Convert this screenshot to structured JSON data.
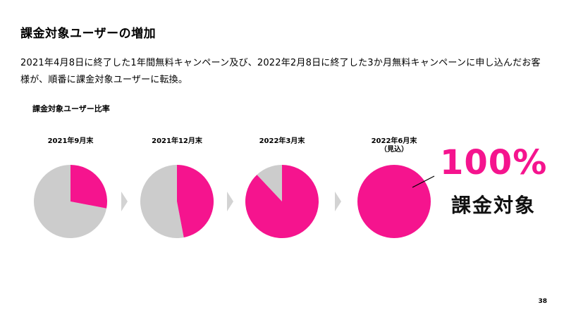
{
  "slide": {
    "title": "課金対象ユーザーの増加",
    "description": "2021年4月8日に終了した1年間無料キャンペーン及び、2022年2月8日に終了した3か月無料キャンペーンに申し込んだお客様が、順番に課金対象ユーザーに転換。",
    "page_number": "38"
  },
  "chart_data": {
    "type": "pie",
    "title": "課金対象ユーザー比率",
    "colors": {
      "paying": "#f5148e",
      "other": "#cccccc",
      "arrow": "#d3d3d3"
    },
    "pies": [
      {
        "label": "2021年9月末",
        "sublabel": "",
        "paying_ratio": 0.28
      },
      {
        "label": "2021年12月末",
        "sublabel": "",
        "paying_ratio": 0.47
      },
      {
        "label": "2022年3月末",
        "sublabel": "",
        "paying_ratio": 0.88
      },
      {
        "label": "2022年6月末",
        "sublabel": "（見込）",
        "paying_ratio": 1.0
      }
    ],
    "annotation": {
      "value": "100%",
      "text": "課金対象"
    }
  }
}
